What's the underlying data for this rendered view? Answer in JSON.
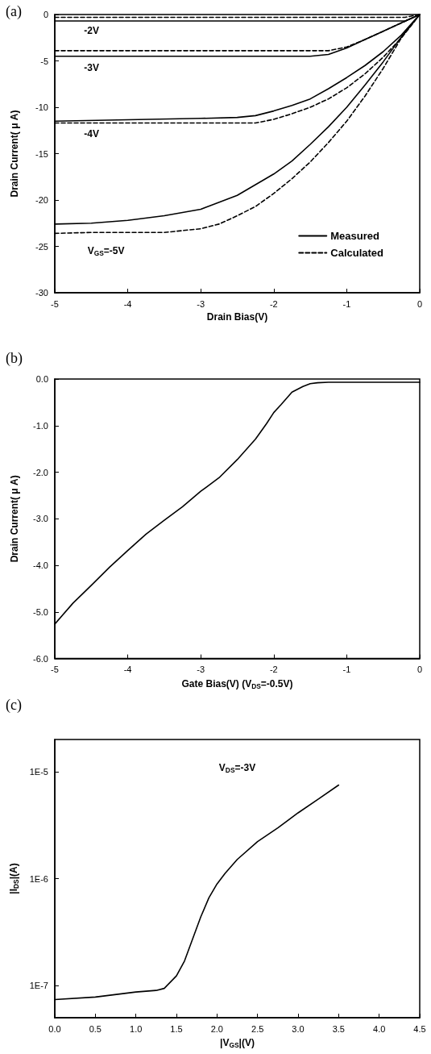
{
  "chart_data": [
    {
      "type": "line",
      "title": "(a)",
      "xlabel": "Drain Bias(V)",
      "ylabel": "Drain Current( μ A)",
      "xlim": [
        -5,
        0
      ],
      "xticks": [
        -5,
        -4,
        -3,
        -2,
        -1,
        0
      ],
      "ylim": [
        -30,
        0
      ],
      "yticks": [
        -30,
        -25,
        -20,
        -15,
        -10,
        -5,
        0
      ],
      "legend": "bottom right",
      "marker": "none",
      "annotations": [
        "-2V",
        "-3V",
        "-4V",
        "V$_{GS}$=-5V"
      ],
      "series": [
        {
          "name": "Measured",
          "color": "#000000",
          "line_style": "solid",
          "x": [
            -5,
            -0.2,
            0
          ],
          "values": [
            -0.7,
            -0.7,
            0
          ]
        },
        {
          "name": "Calculated",
          "color": "#000000",
          "line_style": "dashed",
          "x": [
            -5,
            -0.2,
            0
          ],
          "values": [
            -0.3,
            -0.3,
            0
          ]
        },
        {
          "color": "#000000",
          "line_style": "solid",
          "x": [
            -5,
            -1.5,
            -1.25,
            -1,
            -0.75,
            -0.5,
            -0.25,
            0
          ],
          "values": [
            -4.5,
            -4.5,
            -4.3,
            -3.6,
            -2.7,
            -1.8,
            -0.9,
            0
          ]
        },
        {
          "color": "#000000",
          "line_style": "dashed",
          "x": [
            -5,
            -1.5,
            -1.25,
            -1,
            -0.75,
            -0.5,
            -0.25,
            0
          ],
          "values": [
            -3.9,
            -3.9,
            -3.9,
            -3.5,
            -2.7,
            -1.8,
            -0.9,
            0
          ]
        },
        {
          "color": "#000000",
          "line_style": "solid",
          "x": [
            -5,
            -3,
            -2.5,
            -2.25,
            -2,
            -1.75,
            -1.5,
            -1.25,
            -1,
            -0.75,
            -0.5,
            -0.25,
            0
          ],
          "values": [
            -11.5,
            -11.2,
            -11.1,
            -10.9,
            -10.4,
            -9.8,
            -9.1,
            -8,
            -6.8,
            -5.5,
            -4,
            -2.2,
            0
          ]
        },
        {
          "color": "#000000",
          "line_style": "dashed",
          "x": [
            -5,
            -2.25,
            -2,
            -1.75,
            -1.5,
            -1.25,
            -1,
            -0.75,
            -0.5,
            -0.25,
            0
          ],
          "values": [
            -11.7,
            -11.7,
            -11.3,
            -10.7,
            -10,
            -9.1,
            -7.9,
            -6.4,
            -4.6,
            -2.5,
            0
          ]
        },
        {
          "color": "#000000",
          "line_style": "solid",
          "x": [
            -5,
            -4.5,
            -4,
            -3.5,
            -3,
            -2.5,
            -2,
            -1.75,
            -1.5,
            -1.25,
            -1,
            -0.75,
            -0.5,
            -0.25,
            0
          ],
          "values": [
            -22.6,
            -22.5,
            -22.2,
            -21.7,
            -21,
            -19.5,
            -17.2,
            -15.8,
            -14,
            -12.1,
            -10,
            -7.6,
            -5.1,
            -2.4,
            0
          ]
        },
        {
          "color": "#000000",
          "line_style": "dashed",
          "x": [
            -5,
            -4.5,
            -3.5,
            -3,
            -2.75,
            -2.5,
            -2.25,
            -2,
            -1.75,
            -1.5,
            -1.25,
            -1,
            -0.75,
            -0.5,
            -0.25,
            0
          ],
          "values": [
            -23.6,
            -23.5,
            -23.5,
            -23.1,
            -22.6,
            -21.7,
            -20.7,
            -19.3,
            -17.7,
            -15.9,
            -13.8,
            -11.5,
            -8.8,
            -5.8,
            -2.5,
            0
          ]
        }
      ]
    },
    {
      "type": "line",
      "title": "(b)",
      "xlabel": "Gate Bias(V) (V$_{DS}$=-0.5V)",
      "ylabel": "Drain Current( μ A)",
      "xlim": [
        -5,
        0
      ],
      "xticks": [
        -5,
        -4,
        -3,
        -2,
        -1,
        0
      ],
      "ylim": [
        -6,
        0
      ],
      "yticks": [
        {
          "value": -6,
          "label": "-6.0"
        },
        {
          "value": -5,
          "label": "-5.0"
        },
        {
          "value": -4,
          "label": "-4.0"
        },
        {
          "value": -3,
          "label": "-3.0"
        },
        {
          "value": -2,
          "label": "-2.0"
        },
        {
          "value": -1,
          "label": "-1.0"
        },
        {
          "value": 0,
          "label": "0.0"
        }
      ],
      "marker": "none",
      "series": [
        {
          "color": "#000000",
          "line_style": "solid",
          "x": [
            -5,
            -4.75,
            -4.5,
            -4.25,
            -4,
            -3.75,
            -3.5,
            -3.25,
            -3,
            -2.75,
            -2.5,
            -2.25,
            -2.1,
            -2,
            -1.9,
            -1.75,
            -1.6,
            -1.5,
            -1.4,
            -1.25,
            -1,
            -0.5,
            0
          ],
          "values": [
            -5.26,
            -4.81,
            -4.43,
            -4.04,
            -3.68,
            -3.33,
            -3.03,
            -2.74,
            -2.41,
            -2.12,
            -1.73,
            -1.29,
            -0.96,
            -0.72,
            -0.55,
            -0.28,
            -0.16,
            -0.1,
            -0.08,
            -0.07,
            -0.07,
            -0.07,
            -0.07
          ]
        }
      ]
    },
    {
      "type": "line",
      "title": "(c)",
      "xlabel": "|V$_{GS}$|(V)",
      "ylabel": "|I$_{DS}$|(A)",
      "log": "y",
      "xlim": [
        0,
        4.5
      ],
      "xticks": [
        {
          "value": 0,
          "label": "0.0"
        },
        {
          "value": 0.5,
          "label": "0.5"
        },
        {
          "value": 1,
          "label": "1.0"
        },
        {
          "value": 1.5,
          "label": "1.5"
        },
        {
          "value": 2,
          "label": "2.0"
        },
        {
          "value": 2.5,
          "label": "2.5"
        },
        {
          "value": 3,
          "label": "3.0"
        },
        {
          "value": 3.5,
          "label": "3.5"
        },
        {
          "value": 4,
          "label": "4.0"
        },
        {
          "value": 4.5,
          "label": "4.5"
        }
      ],
      "ylim": [
        5e-08,
        2e-05
      ],
      "yticks": [
        {
          "value": 1e-07,
          "label": "1E-7"
        },
        {
          "value": 1e-06,
          "label": "1E-6"
        },
        {
          "value": 1e-05,
          "label": "1E-5"
        }
      ],
      "marker": "none",
      "annotations": [
        "V$_{DS}$=-3V"
      ],
      "series": [
        {
          "color": "#000000",
          "line_style": "solid",
          "x": [
            0,
            0.5,
            1,
            1.25,
            1.35,
            1.5,
            1.6,
            1.7,
            1.8,
            1.9,
            2,
            2.1,
            2.25,
            2.5,
            2.75,
            3,
            3.25,
            3.5
          ],
          "values": [
            7.4e-08,
            7.8e-08,
            8.7e-08,
            9e-08,
            9.4e-08,
            1.23e-07,
            1.7e-07,
            2.73e-07,
            4.38e-07,
            6.6e-07,
            8.9e-07,
            1.12e-06,
            1.51e-06,
            2.22e-06,
            2.98e-06,
            4.12e-06,
            5.54e-06,
            7.5e-06
          ]
        }
      ]
    }
  ]
}
